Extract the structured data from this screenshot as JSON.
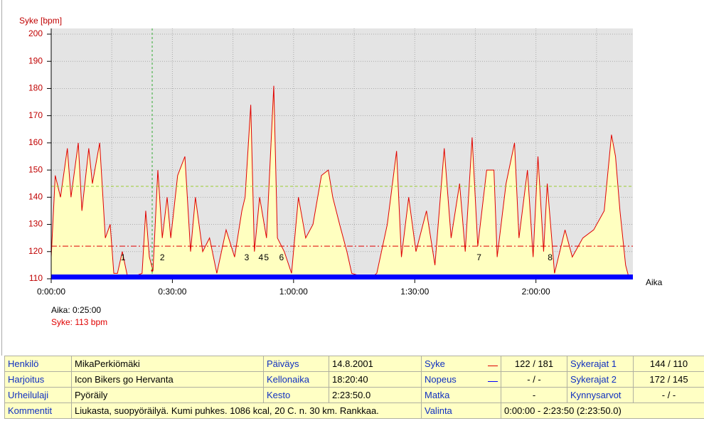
{
  "chart_data": {
    "type": "line",
    "y_label": "Syke [bpm]",
    "x_label": "Aika",
    "ylim": [
      110,
      200
    ],
    "yticks": [
      110,
      120,
      130,
      140,
      150,
      160,
      170,
      180,
      190,
      200
    ],
    "xlim": [
      0,
      144
    ],
    "xticks": [
      {
        "value": 0,
        "label": "0:00:00"
      },
      {
        "value": 30,
        "label": "0:30:00"
      },
      {
        "value": 60,
        "label": "1:00:00"
      },
      {
        "value": 90,
        "label": "1:30:00"
      },
      {
        "value": 120,
        "label": "2:00:00"
      }
    ],
    "xminor": [
      15,
      45,
      75,
      105,
      135
    ],
    "grid": true,
    "x": [
      0,
      1.0,
      2.3,
      4.0,
      4.9,
      6.7,
      7.6,
      9.3,
      10.2,
      12,
      13.4,
      14.6,
      15.5,
      16.4,
      17.6,
      19,
      22.5,
      23.4,
      24.3,
      25.2,
      26.4,
      27.5,
      28.7,
      29.6,
      31.3,
      33.1,
      34.5,
      35.7,
      37.5,
      39.2,
      41,
      43.3,
      45.4,
      47.2,
      48.0,
      49.4,
      50.3,
      51.6,
      53.3,
      55.1,
      56,
      57.7,
      59.5,
      61.2,
      63,
      64.8,
      66.9,
      68.6,
      69.7,
      71.4,
      73.2,
      74.4,
      78.8,
      80.6,
      83.2,
      85.5,
      86.7,
      88.5,
      90.3,
      92.9,
      95,
      97.3,
      99,
      101.1,
      102.5,
      104.2,
      105.6,
      107.8,
      109.6,
      110.4,
      112.6,
      114.7,
      115.8,
      117.9,
      119.3,
      120.5,
      121.9,
      122.8,
      124.6,
      127.2,
      129,
      131.6,
      134.3,
      136.9,
      138.7,
      139.7,
      140.8,
      142.2,
      142.9
    ],
    "series": [
      {
        "color": "#e00000",
        "fill": "#ffffc0",
        "values": [
          118,
          148,
          140,
          158,
          140,
          160,
          135,
          158,
          145,
          160,
          125,
          130,
          112,
          112,
          120,
          110,
          112,
          135,
          118,
          113,
          150,
          125,
          140,
          125,
          148,
          155,
          120,
          140,
          120,
          125,
          112,
          128,
          118,
          135,
          140,
          174,
          120,
          140,
          125,
          181,
          125,
          120,
          112,
          140,
          125,
          130,
          148,
          150,
          140,
          130,
          120,
          112,
          110,
          112,
          130,
          157,
          118,
          140,
          120,
          135,
          115,
          158,
          125,
          145,
          120,
          162,
          122,
          150,
          150,
          118,
          145,
          160,
          125,
          150,
          118,
          155,
          120,
          145,
          112,
          128,
          118,
          125,
          128,
          135,
          163,
          155,
          135,
          115,
          111
        ]
      }
    ],
    "ref_lines": [
      {
        "value": 122,
        "color": "#e00000"
      },
      {
        "value": 144,
        "color": "#9acd32"
      }
    ],
    "laps": [
      {
        "label": "1",
        "x": 17.8
      },
      {
        "label": "2",
        "x": 27.5
      },
      {
        "label": "3",
        "x": 48.4
      },
      {
        "label": "4",
        "x": 51.9
      },
      {
        "label": "5",
        "x": 53.3
      },
      {
        "label": "6",
        "x": 57
      },
      {
        "label": "7",
        "x": 105.9
      },
      {
        "label": "8",
        "x": 123.5
      }
    ],
    "cursor": {
      "x": 25,
      "label": "Aika: 0:25:00",
      "value": 113,
      "value_label": "Syke: 113 bpm"
    }
  },
  "info_table": {
    "rows": [
      [
        "Henkilö",
        "MikaPerkiömäki",
        "Päiväys",
        "14.8.2001",
        "Syke",
        "122 / 181",
        "Sykerajat 1",
        "144 / 110"
      ],
      [
        "Harjoitus",
        "Icon Bikers go Hervanta",
        "Kellonaika",
        "18:20:40",
        "Nopeus",
        "- / -",
        "Sykerajat 2",
        "172 / 145"
      ],
      [
        "Urheilulaji",
        "Pyöräily",
        "Kesto",
        "2:23:50.0",
        "Matka",
        "-",
        "Kynnysarvot",
        "- / -"
      ],
      [
        "Kommentit",
        "Liukasta, suopyöräilyä. Kumi puhkes. 1086 kcal, 20 C. n. 30 km. Rankkaa.",
        "Valinta",
        "0:00:00 - 2:23:50 (2:23:50.0)"
      ]
    ]
  }
}
